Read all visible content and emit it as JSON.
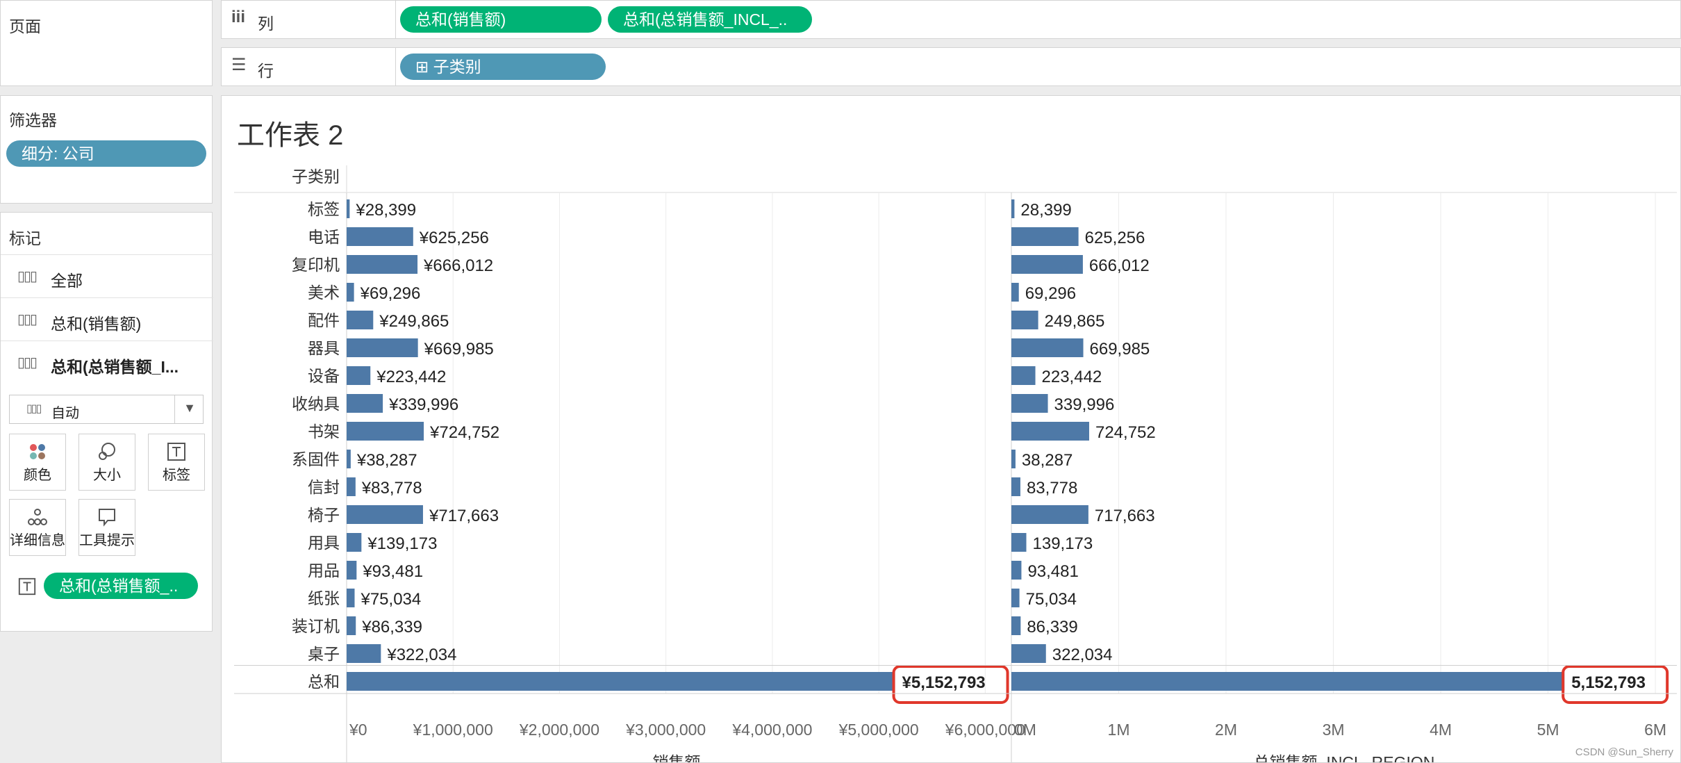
{
  "shelves": {
    "columns": {
      "label": "列",
      "pills": [
        "总和(销售额)",
        "总和(总销售额_INCL_.."
      ]
    },
    "rows": {
      "label": "行",
      "pills": [
        "⊞ 子类别"
      ]
    }
  },
  "left_panel": {
    "pages_title": "页面",
    "filters_title": "筛选器",
    "filter_pill": "细分: 公司",
    "marks_title": "标记",
    "marks_items": [
      "全部",
      "总和(销售额)",
      "总和(总销售额_I..."
    ],
    "mark_type": "自动",
    "mark_buttons": [
      "颜色",
      "大小",
      "标签",
      "详细信息",
      "工具提示"
    ],
    "label_pill": "总和(总销售额_.."
  },
  "sheet": {
    "title": "工作表 2",
    "row_header": "子类别",
    "total_label": "总和"
  },
  "chart_data": [
    {
      "type": "bar",
      "orientation": "horizontal",
      "categories": [
        "标签",
        "电话",
        "复印机",
        "美术",
        "配件",
        "器具",
        "设备",
        "收纳具",
        "书架",
        "系固件",
        "信封",
        "椅子",
        "用具",
        "用品",
        "纸张",
        "装订机",
        "桌子",
        "总和"
      ],
      "values": [
        28399,
        625256,
        666012,
        69296,
        249865,
        669985,
        223442,
        339996,
        724752,
        38287,
        83778,
        717663,
        139173,
        93481,
        75034,
        86339,
        322034,
        5152793
      ],
      "data_labels": [
        "¥28,399",
        "¥625,256",
        "¥666,012",
        "¥69,296",
        "¥249,865",
        "¥669,985",
        "¥223,442",
        "¥339,996",
        "¥724,752",
        "¥38,287",
        "¥83,778",
        "¥717,663",
        "¥139,173",
        "¥93,481",
        "¥75,034",
        "¥86,339",
        "¥322,034",
        "¥5,152,793"
      ],
      "xlim": [
        0,
        6200000
      ],
      "ticks": [
        0,
        1000000,
        2000000,
        3000000,
        4000000,
        5000000,
        6000000
      ],
      "tick_labels": [
        "¥0",
        "¥1,000,000",
        "¥2,000,000",
        "¥3,000,000",
        "¥4,000,000",
        "¥5,000,000",
        "¥6,000,000"
      ],
      "xlabel": "销售额",
      "bar_color": "#4e79a7",
      "highlight_color": "#e0372b",
      "grid": true
    },
    {
      "type": "bar",
      "orientation": "horizontal",
      "categories": [
        "标签",
        "电话",
        "复印机",
        "美术",
        "配件",
        "器具",
        "设备",
        "收纳具",
        "书架",
        "系固件",
        "信封",
        "椅子",
        "用具",
        "用品",
        "纸张",
        "装订机",
        "桌子",
        "总和"
      ],
      "values": [
        28399,
        625256,
        666012,
        69296,
        249865,
        669985,
        223442,
        339996,
        724752,
        38287,
        83778,
        717663,
        139173,
        93481,
        75034,
        86339,
        322034,
        5152793
      ],
      "data_labels": [
        "28,399",
        "625,256",
        "666,012",
        "69,296",
        "249,865",
        "669,985",
        "223,442",
        "339,996",
        "724,752",
        "38,287",
        "83,778",
        "717,663",
        "139,173",
        "93,481",
        "75,034",
        "86,339",
        "322,034",
        "5,152,793"
      ],
      "xlim": [
        0,
        6200000
      ],
      "ticks": [
        0,
        1000000,
        2000000,
        3000000,
        4000000,
        5000000,
        6000000
      ],
      "tick_labels": [
        "0M",
        "1M",
        "2M",
        "3M",
        "4M",
        "5M",
        "6M"
      ],
      "xlabel": "总销售额_INCL_REGION",
      "bar_color": "#4e79a7",
      "highlight_color": "#e0372b",
      "grid": true
    }
  ],
  "watermark": "CSDN @Sun_Sherry"
}
